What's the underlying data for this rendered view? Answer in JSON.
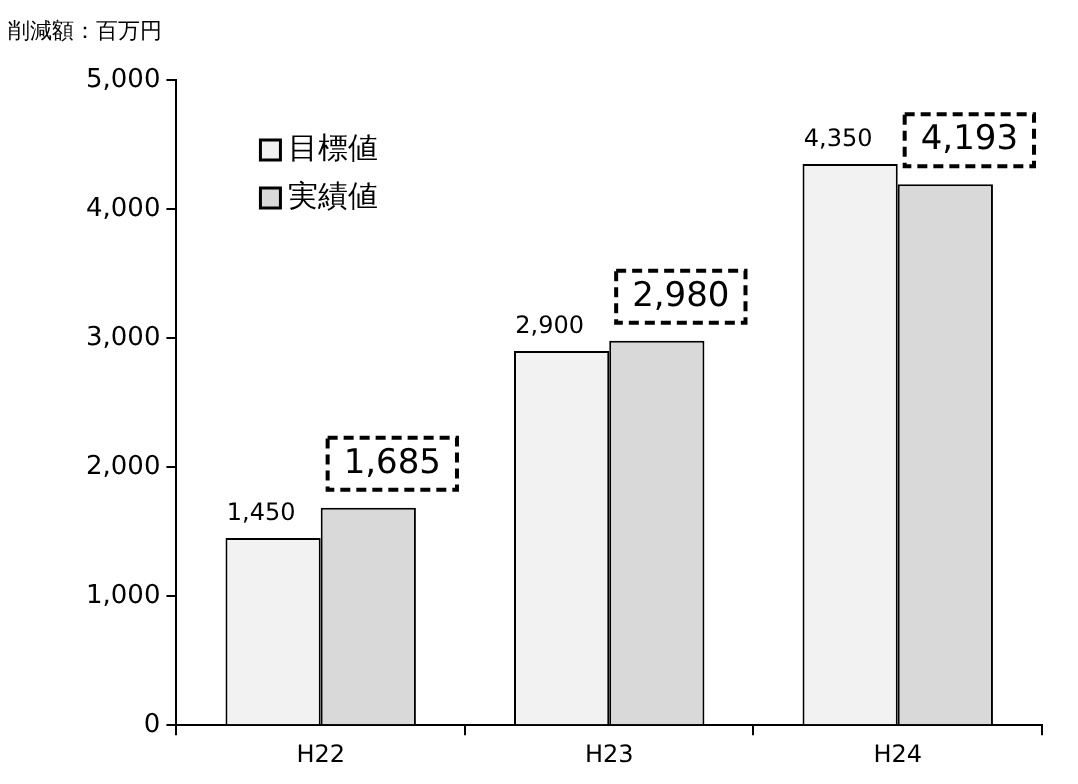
{
  "chart_data": {
    "type": "bar",
    "ylabel": "削減額：百万円",
    "categories": [
      "H22",
      "H23",
      "H24"
    ],
    "series": [
      {
        "name": "目標値",
        "color": "#f2f2f2",
        "values": [
          1450,
          2900,
          4350
        ],
        "value_labels": [
          "1,450",
          "2,900",
          "4,350"
        ]
      },
      {
        "name": "実績値",
        "color": "#d9d9d9",
        "values": [
          1685,
          2980,
          4193
        ],
        "value_labels": [
          "1,685",
          "2,980",
          "4,193"
        ]
      }
    ],
    "ylim": [
      0,
      5000
    ],
    "yticks": [
      {
        "value": 0,
        "label": "0"
      },
      {
        "value": 1000,
        "label": "1,000"
      },
      {
        "value": 2000,
        "label": "2,000"
      },
      {
        "value": 3000,
        "label": "3,000"
      },
      {
        "value": 4000,
        "label": "4,000"
      },
      {
        "value": 5000,
        "label": "5,000"
      }
    ],
    "grid": false,
    "legend": "top left"
  }
}
